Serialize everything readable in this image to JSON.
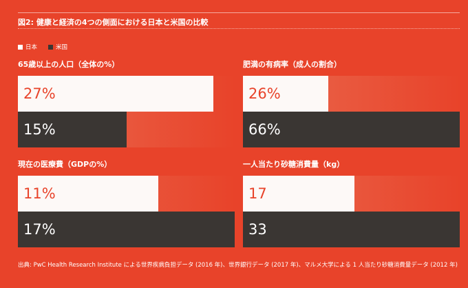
{
  "figure": {
    "title": "図2: 健康と経済の4つの側面における日本と米国の比較",
    "source": "出典: PwC Health Research Institute による世界疾病負担データ (2016 年)、世界銀行データ (2017 年)、マルメ大学による 1 人当たり砂糖消費量データ (2012 年)"
  },
  "legend": {
    "japan": "日本",
    "us": "米国"
  },
  "colors": {
    "background": "#e8432a",
    "japan": "#fdf9f7",
    "us": "#3a3633",
    "japan_text": "#e8432a"
  },
  "chart_data": [
    {
      "type": "bar",
      "title": "65歳以上の人口（全体の%）",
      "categories": [
        "日本",
        "米国"
      ],
      "values": [
        27,
        15
      ],
      "labels": [
        "27%",
        "15%"
      ],
      "ylim": [
        0,
        30
      ]
    },
    {
      "type": "bar",
      "title": "肥満の有病率（成人の割合）",
      "categories": [
        "日本",
        "米国"
      ],
      "values": [
        26,
        66
      ],
      "labels": [
        "26%",
        "66%"
      ],
      "ylim": [
        0,
        66
      ]
    },
    {
      "type": "bar",
      "title": "現在の医療費（GDPの%）",
      "categories": [
        "日本",
        "米国"
      ],
      "values": [
        11,
        17
      ],
      "labels": [
        "11%",
        "17%"
      ],
      "ylim": [
        0,
        17
      ]
    },
    {
      "type": "bar",
      "title": "一人当たり砂糖消費量（kg）",
      "categories": [
        "日本",
        "米国"
      ],
      "values": [
        17,
        33
      ],
      "labels": [
        "17",
        "33"
      ],
      "ylim": [
        0,
        33
      ]
    }
  ]
}
